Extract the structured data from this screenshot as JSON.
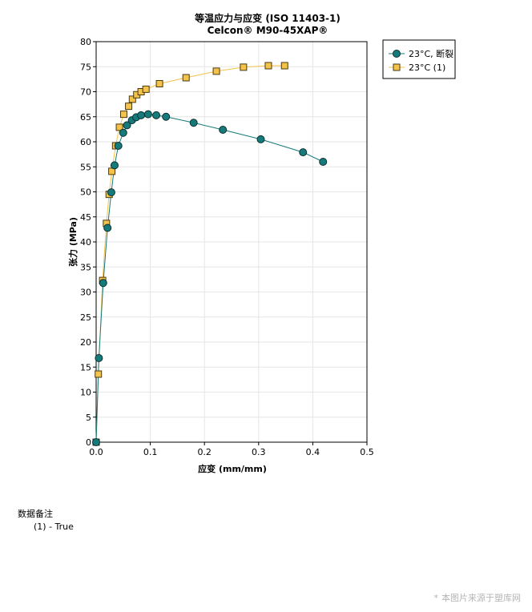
{
  "chart_data": {
    "type": "line",
    "title": "等温应力与应变 (ISO 11403-1)",
    "subtitle": "Celcon® M90-45XAP®",
    "xlabel": "应变 (mm/mm)",
    "ylabel": "张力 (MPa)",
    "xlim": [
      0,
      0.5
    ],
    "ylim": [
      0,
      80
    ],
    "xticks": [
      0,
      0.1,
      0.2,
      0.3,
      0.4,
      0.5
    ],
    "xtick_labels": [
      "0.0",
      "0.1",
      "0.2",
      "0.3",
      "0.4",
      "0.5"
    ],
    "yticks": [
      0,
      5,
      10,
      15,
      20,
      25,
      30,
      35,
      40,
      45,
      50,
      55,
      60,
      65,
      70,
      75,
      80
    ],
    "grid": true,
    "legend_position": "right",
    "series": [
      {
        "name": "23°C, 断裂",
        "color": "#157a7a",
        "marker": "circle",
        "x": [
          0,
          0.005,
          0.013,
          0.021,
          0.028,
          0.034,
          0.041,
          0.05,
          0.057,
          0.066,
          0.074,
          0.083,
          0.096,
          0.111,
          0.129,
          0.18,
          0.234,
          0.304,
          0.382,
          0.419
        ],
        "y": [
          0,
          16.8,
          31.8,
          42.8,
          49.9,
          55.3,
          59.2,
          61.8,
          63.3,
          64.3,
          64.9,
          65.3,
          65.5,
          65.3,
          65.0,
          63.8,
          62.4,
          60.5,
          57.9,
          56.0
        ]
      },
      {
        "name": "23°C (1)",
        "color": "#f5c24a",
        "marker": "square",
        "x": [
          0,
          0.004,
          0.012,
          0.019,
          0.024,
          0.029,
          0.036,
          0.043,
          0.051,
          0.06,
          0.067,
          0.075,
          0.083,
          0.092,
          0.117,
          0.166,
          0.222,
          0.272,
          0.318,
          0.348
        ],
        "y": [
          0,
          13.6,
          32.3,
          43.7,
          49.5,
          54.1,
          59.2,
          62.9,
          65.5,
          67.1,
          68.5,
          69.4,
          70.0,
          70.5,
          71.6,
          72.8,
          74.1,
          74.9,
          75.2,
          75.2
        ]
      }
    ]
  },
  "notes": {
    "heading": "数据备注",
    "items": [
      "(1) - True"
    ]
  },
  "watermark": {
    "text": "本图片来源于塑库网"
  }
}
